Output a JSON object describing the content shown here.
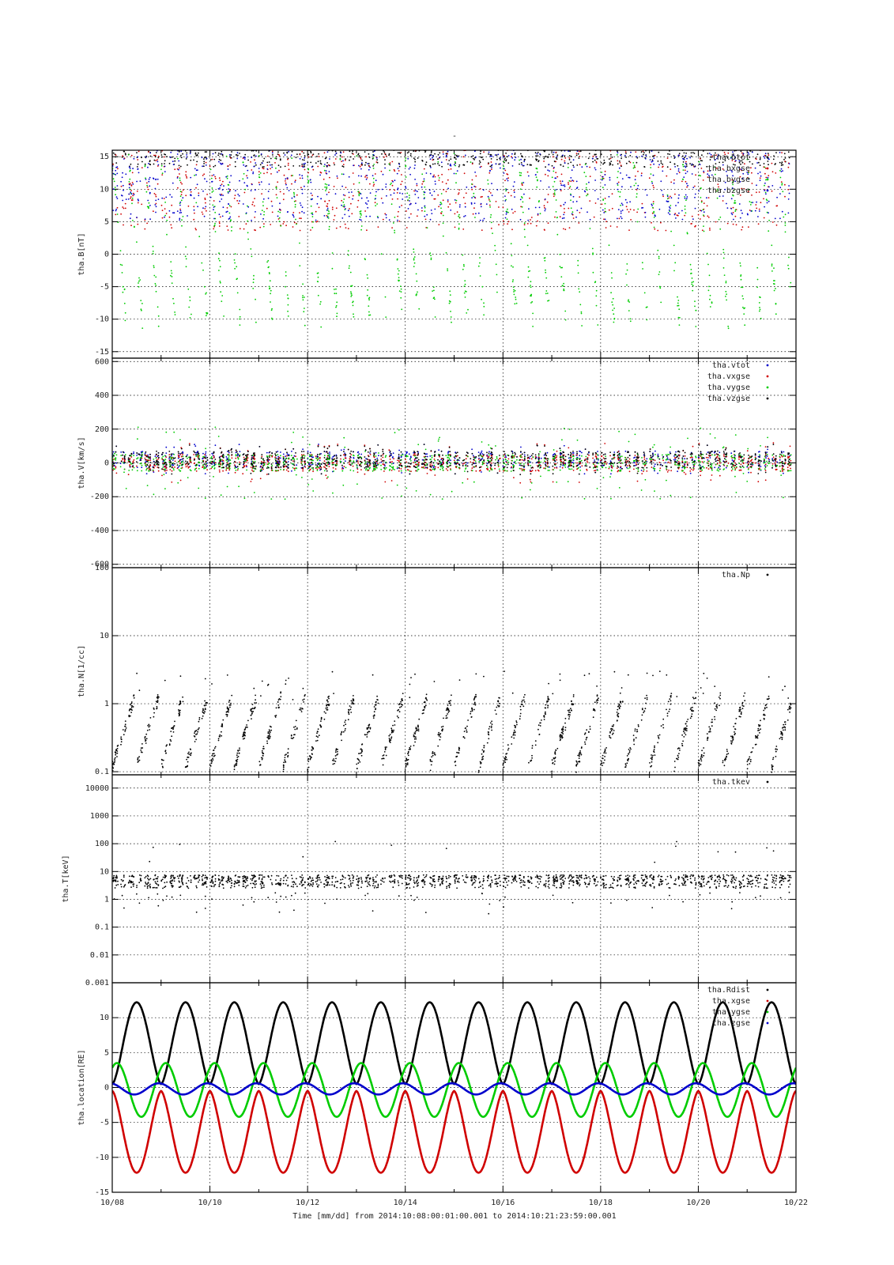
{
  "figure": {
    "title_mark": "-",
    "xlabel": "Time [mm/dd]  from 2014:10:08:00:01:00.001  to  2014:10:21:23:59:00.001",
    "x_ticks": [
      "10/08",
      "10/10",
      "10/12",
      "10/14",
      "10/16",
      "10/18",
      "10/20",
      "10/22"
    ]
  },
  "colors": {
    "red": "#d00000",
    "green": "#00cc00",
    "blue": "#0000cc",
    "black": "#000000"
  },
  "chart_data": [
    {
      "type": "scatter",
      "ylabel": "tha.B[nT]",
      "ylim": [
        -16,
        16
      ],
      "yticks": [
        15,
        10,
        5,
        0,
        -5,
        -10,
        -15
      ],
      "ytick_labels": [
        "15",
        "10",
        "5",
        "0",
        "-5",
        "-10",
        "-15"
      ],
      "legend": [
        "tha.btot",
        "tha.bxgse",
        "tha.bygse",
        "tha.bzgse"
      ],
      "legend_position": "top-right",
      "series": [
        {
          "name": "tha.btot",
          "color": "black",
          "pattern": "bursts",
          "level": 15,
          "spread": 2
        },
        {
          "name": "tha.bxgse",
          "color": "red",
          "pattern": "bursts",
          "level": 10,
          "spread": 8
        },
        {
          "name": "tha.bygse",
          "color": "green",
          "pattern": "ramps",
          "level": 0,
          "spread": 14
        },
        {
          "name": "tha.bzgse",
          "color": "blue",
          "pattern": "bursts",
          "level": 10,
          "spread": 6
        }
      ]
    },
    {
      "type": "scatter",
      "ylabel": "tha.V[km/s]",
      "ylim": [
        -620,
        620
      ],
      "yticks": [
        600,
        400,
        200,
        0,
        -200,
        -400,
        -600
      ],
      "ytick_labels": [
        "600",
        "400",
        "200",
        "0",
        "-200",
        "-400",
        "-600"
      ],
      "legend": [
        "tha.vtot",
        "tha.vxgse",
        "tha.vygse",
        "tha.vzgse"
      ],
      "legend_position": "top-right",
      "series": [
        {
          "name": "tha.vtot",
          "color": "blue",
          "pattern": "band",
          "level": 20,
          "spread": 60
        },
        {
          "name": "tha.vxgse",
          "color": "red",
          "pattern": "band",
          "level": 0,
          "spread": 80
        },
        {
          "name": "tha.vygse",
          "color": "green",
          "pattern": "band",
          "level": 0,
          "spread": 150
        },
        {
          "name": "tha.vzgse",
          "color": "black",
          "pattern": "band",
          "level": 20,
          "spread": 60
        }
      ]
    },
    {
      "type": "scatter",
      "ylabel": "tha.N[1/cc]",
      "yscale": "log",
      "ylim": [
        0.09,
        100
      ],
      "yticks": [
        100,
        10,
        1,
        0.1
      ],
      "ytick_labels": [
        "100",
        "10",
        "1",
        "0.1"
      ],
      "legend": [
        "tha.Np"
      ],
      "legend_position": "top-right",
      "series": [
        {
          "name": "tha.Np",
          "color": "black",
          "pattern": "logdecay",
          "level": 0.3,
          "spread": 1
        }
      ]
    },
    {
      "type": "scatter",
      "ylabel": "tha.T[keV]",
      "yscale": "log",
      "ylim": [
        0.001,
        30000
      ],
      "yticks": [
        10000,
        1000,
        100,
        10,
        1,
        0.1,
        0.01,
        0.001
      ],
      "ytick_labels": [
        "10000",
        "1000",
        "100",
        "10",
        "1",
        "0.1",
        "0.01",
        "0.001"
      ],
      "legend": [
        "tha.tkev"
      ],
      "legend_position": "top-right",
      "series": [
        {
          "name": "tha.tkev",
          "color": "black",
          "pattern": "logflat",
          "level": 5,
          "spread": 1
        }
      ]
    },
    {
      "type": "line",
      "ylabel": "tha.location[RE]",
      "ylim": [
        -15,
        15
      ],
      "yticks": [
        10,
        5,
        0,
        -5,
        -10,
        -15
      ],
      "ytick_labels": [
        "10",
        "5",
        "0",
        "-5",
        "-10",
        "-15"
      ],
      "legend": [
        "tha.Rdist",
        "tha.xgse",
        "tha.ygse",
        "tha.zgse"
      ],
      "legend_position": "top-right",
      "orbit_period_days": 1.0,
      "series": [
        {
          "name": "tha.Rdist",
          "color": "black",
          "max": 12.2,
          "min": 0.5
        },
        {
          "name": "tha.xgse",
          "color": "red",
          "max": -0.5,
          "min": -12.2
        },
        {
          "name": "tha.ygse",
          "color": "green",
          "max": 3.5,
          "min": -4.2
        },
        {
          "name": "tha.zgse",
          "color": "blue",
          "max": 0.6,
          "min": -1.0
        }
      ]
    }
  ]
}
